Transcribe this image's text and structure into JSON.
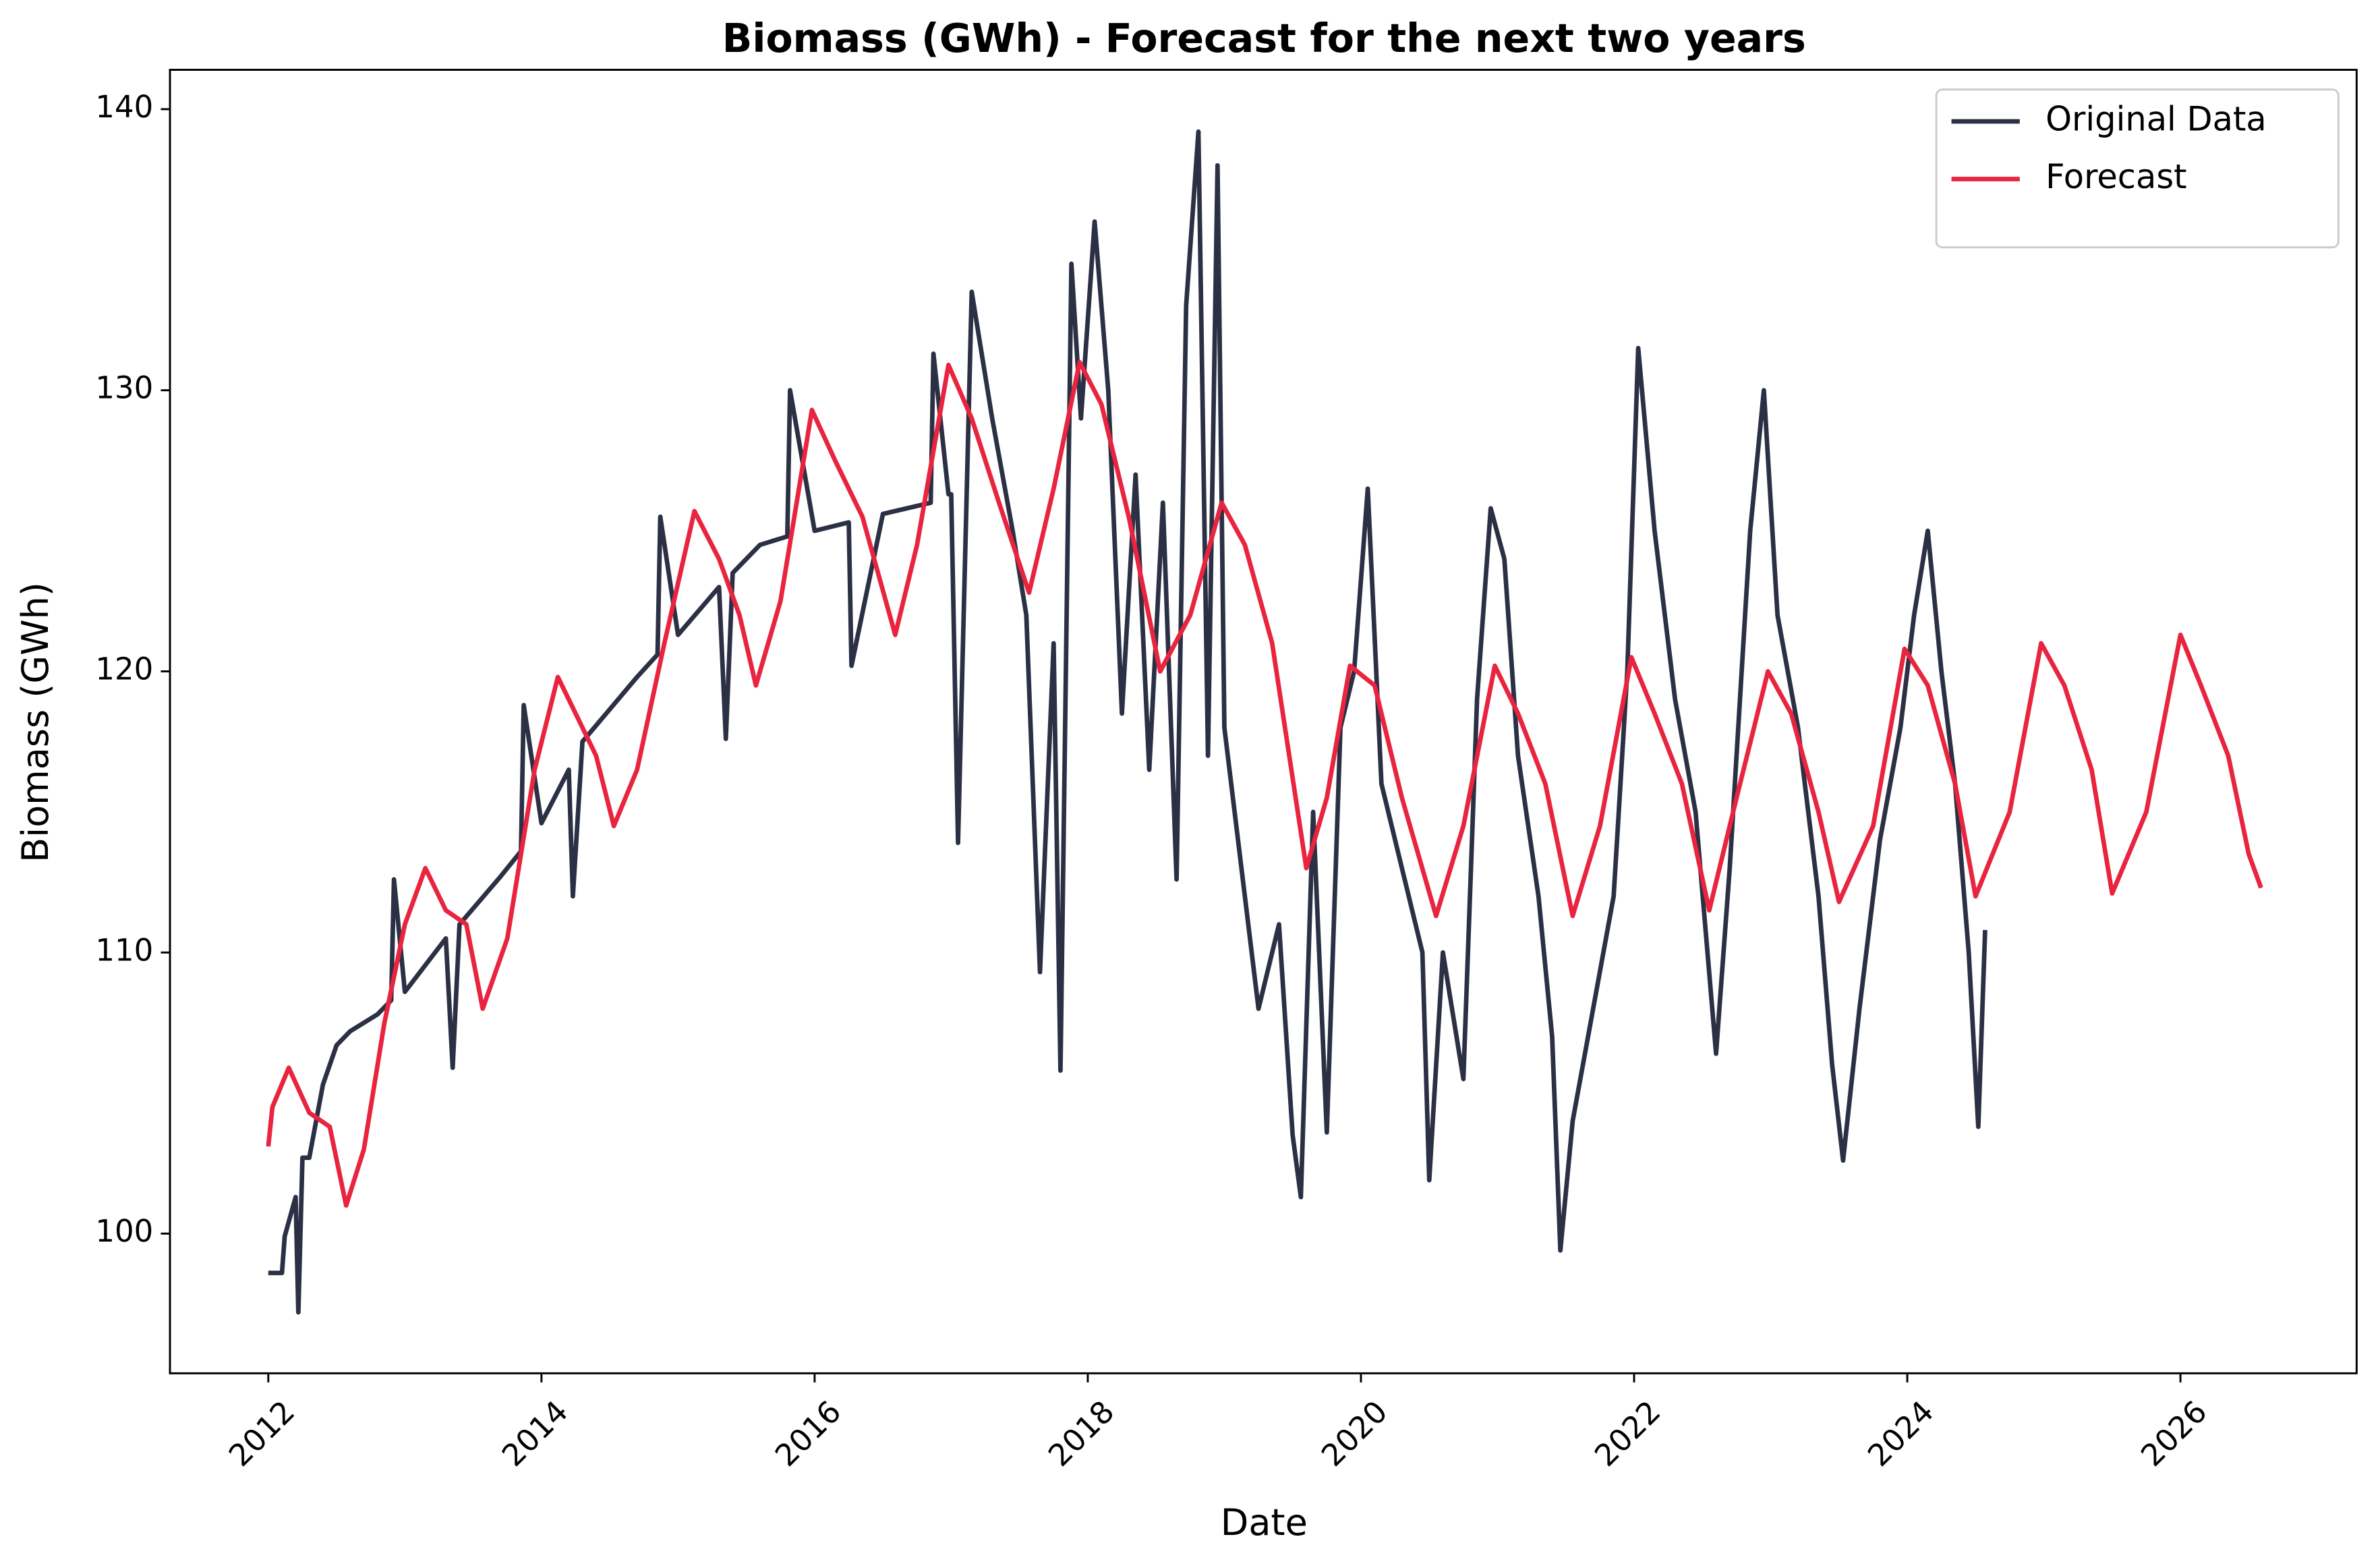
{
  "chart_data": {
    "type": "line",
    "title": "Biomass (GWh) - Forecast for the next two years",
    "x_label": "Date",
    "y_label": "Biomass (GWh)",
    "xlim": [
      2011.28,
      2027.29
    ],
    "ylim": [
      95.03,
      141.4
    ],
    "xticks": [
      2012,
      2014,
      2016,
      2018,
      2020,
      2022,
      2024,
      2026
    ],
    "yticks": [
      100,
      110,
      120,
      130,
      140
    ],
    "legend": "upper right",
    "series": [
      {
        "name": "Original Data",
        "color": "#2b3044",
        "x": [
          2012.0,
          2012.1,
          2012.12,
          2012.2,
          2012.22,
          2012.25,
          2012.3,
          2012.4,
          2012.5,
          2012.6,
          2012.8,
          2012.9,
          2012.92,
          2013.0,
          2013.3,
          2013.35,
          2013.4,
          2013.7,
          2013.85,
          2013.87,
          2014.0,
          2014.2,
          2014.23,
          2014.3,
          2014.7,
          2014.85,
          2014.87,
          2015.0,
          2015.3,
          2015.35,
          2015.4,
          2015.6,
          2015.8,
          2015.82,
          2016.0,
          2016.25,
          2016.27,
          2016.5,
          2016.85,
          2016.87,
          2016.98,
          2017.0,
          2017.05,
          2017.15,
          2017.3,
          2017.45,
          2017.55,
          2017.65,
          2017.75,
          2017.8,
          2017.88,
          2017.95,
          2018.05,
          2018.15,
          2018.25,
          2018.35,
          2018.45,
          2018.55,
          2018.65,
          2018.72,
          2018.81,
          2018.88,
          2018.95,
          2019.0,
          2019.1,
          2019.25,
          2019.4,
          2019.5,
          2019.56,
          2019.65,
          2019.75,
          2019.85,
          2019.95,
          2020.05,
          2020.15,
          2020.3,
          2020.45,
          2020.5,
          2020.6,
          2020.75,
          2020.85,
          2020.95,
          2021.05,
          2021.15,
          2021.3,
          2021.4,
          2021.46,
          2021.55,
          2021.7,
          2021.85,
          2021.95,
          2022.03,
          2022.15,
          2022.3,
          2022.45,
          2022.6,
          2022.7,
          2022.85,
          2022.95,
          2023.05,
          2023.2,
          2023.35,
          2023.45,
          2023.53,
          2023.65,
          2023.8,
          2023.95,
          2024.05,
          2024.15,
          2024.25,
          2024.35,
          2024.45,
          2024.52,
          2024.57
        ],
        "values": [
          98.6,
          98.6,
          99.9,
          101.3,
          97.2,
          102.7,
          102.7,
          105.3,
          106.7,
          107.2,
          107.8,
          108.3,
          112.6,
          108.6,
          110.5,
          105.9,
          111.0,
          112.7,
          113.6,
          118.8,
          114.6,
          116.5,
          112.0,
          117.5,
          119.8,
          120.6,
          125.5,
          121.3,
          123.0,
          117.6,
          123.5,
          124.5,
          124.8,
          130.0,
          125.0,
          125.3,
          120.2,
          125.6,
          126.0,
          131.3,
          126.3,
          126.3,
          113.9,
          133.5,
          129.0,
          125.0,
          122.0,
          109.3,
          121.0,
          105.8,
          134.5,
          129.0,
          136.0,
          130.0,
          118.5,
          127.0,
          116.5,
          126.0,
          112.6,
          133.0,
          139.2,
          117.0,
          138.0,
          118.0,
          114.0,
          108.0,
          111.0,
          103.5,
          101.3,
          115.0,
          103.6,
          118.0,
          120.0,
          126.5,
          116.0,
          113.0,
          110.0,
          101.9,
          110.0,
          105.5,
          119.0,
          125.8,
          124.0,
          117.0,
          112.0,
          107.0,
          99.4,
          104.0,
          108.0,
          112.0,
          120.0,
          131.5,
          125.0,
          119.0,
          115.0,
          106.4,
          113.0,
          125.0,
          130.0,
          122.0,
          118.0,
          112.0,
          106.0,
          102.6,
          108.0,
          114.0,
          118.0,
          122.0,
          125.0,
          120.0,
          116.0,
          110.0,
          103.8,
          110.8
        ]
      },
      {
        "name": "Forecast",
        "color": "#e8243f",
        "x": [
          2012.0,
          2012.03,
          2012.15,
          2012.3,
          2012.45,
          2012.57,
          2012.7,
          2012.85,
          2013.0,
          2013.15,
          2013.3,
          2013.45,
          2013.57,
          2013.75,
          2013.95,
          2014.12,
          2014.25,
          2014.4,
          2014.53,
          2014.7,
          2014.9,
          2015.12,
          2015.3,
          2015.45,
          2015.57,
          2015.75,
          2015.98,
          2016.15,
          2016.35,
          2016.59,
          2016.75,
          2016.98,
          2017.15,
          2017.35,
          2017.57,
          2017.75,
          2017.94,
          2018.1,
          2018.3,
          2018.53,
          2018.75,
          2018.98,
          2019.15,
          2019.35,
          2019.6,
          2019.75,
          2019.92,
          2020.1,
          2020.3,
          2020.55,
          2020.75,
          2020.98,
          2021.15,
          2021.35,
          2021.55,
          2021.75,
          2021.98,
          2022.15,
          2022.35,
          2022.55,
          2022.75,
          2022.98,
          2023.15,
          2023.35,
          2023.5,
          2023.75,
          2023.98,
          2024.15,
          2024.35,
          2024.5,
          2024.75,
          2024.98,
          2025.15,
          2025.35,
          2025.5,
          2025.75,
          2026.0,
          2026.15,
          2026.35,
          2026.5,
          2026.59
        ],
        "values": [
          103.1,
          104.5,
          105.9,
          104.3,
          103.8,
          101.0,
          103.0,
          107.5,
          111.0,
          113.0,
          111.5,
          111.0,
          108.0,
          110.5,
          116.5,
          119.8,
          118.5,
          117.0,
          114.5,
          116.5,
          121.0,
          125.7,
          124.0,
          122.0,
          119.5,
          122.5,
          129.3,
          127.5,
          125.5,
          121.3,
          124.5,
          130.9,
          129.0,
          126.0,
          122.8,
          126.5,
          131.0,
          129.5,
          125.5,
          120.0,
          122.0,
          126.0,
          124.5,
          121.0,
          113.0,
          115.5,
          120.2,
          119.5,
          115.5,
          111.3,
          114.5,
          120.2,
          118.5,
          116.0,
          111.3,
          114.5,
          120.5,
          118.5,
          116.0,
          111.5,
          115.5,
          120.0,
          118.5,
          115.0,
          111.8,
          114.5,
          120.8,
          119.5,
          116.0,
          112.0,
          115.0,
          121.0,
          119.5,
          116.5,
          112.1,
          115.0,
          121.3,
          119.5,
          117.0,
          113.5,
          112.3
        ]
      }
    ]
  }
}
